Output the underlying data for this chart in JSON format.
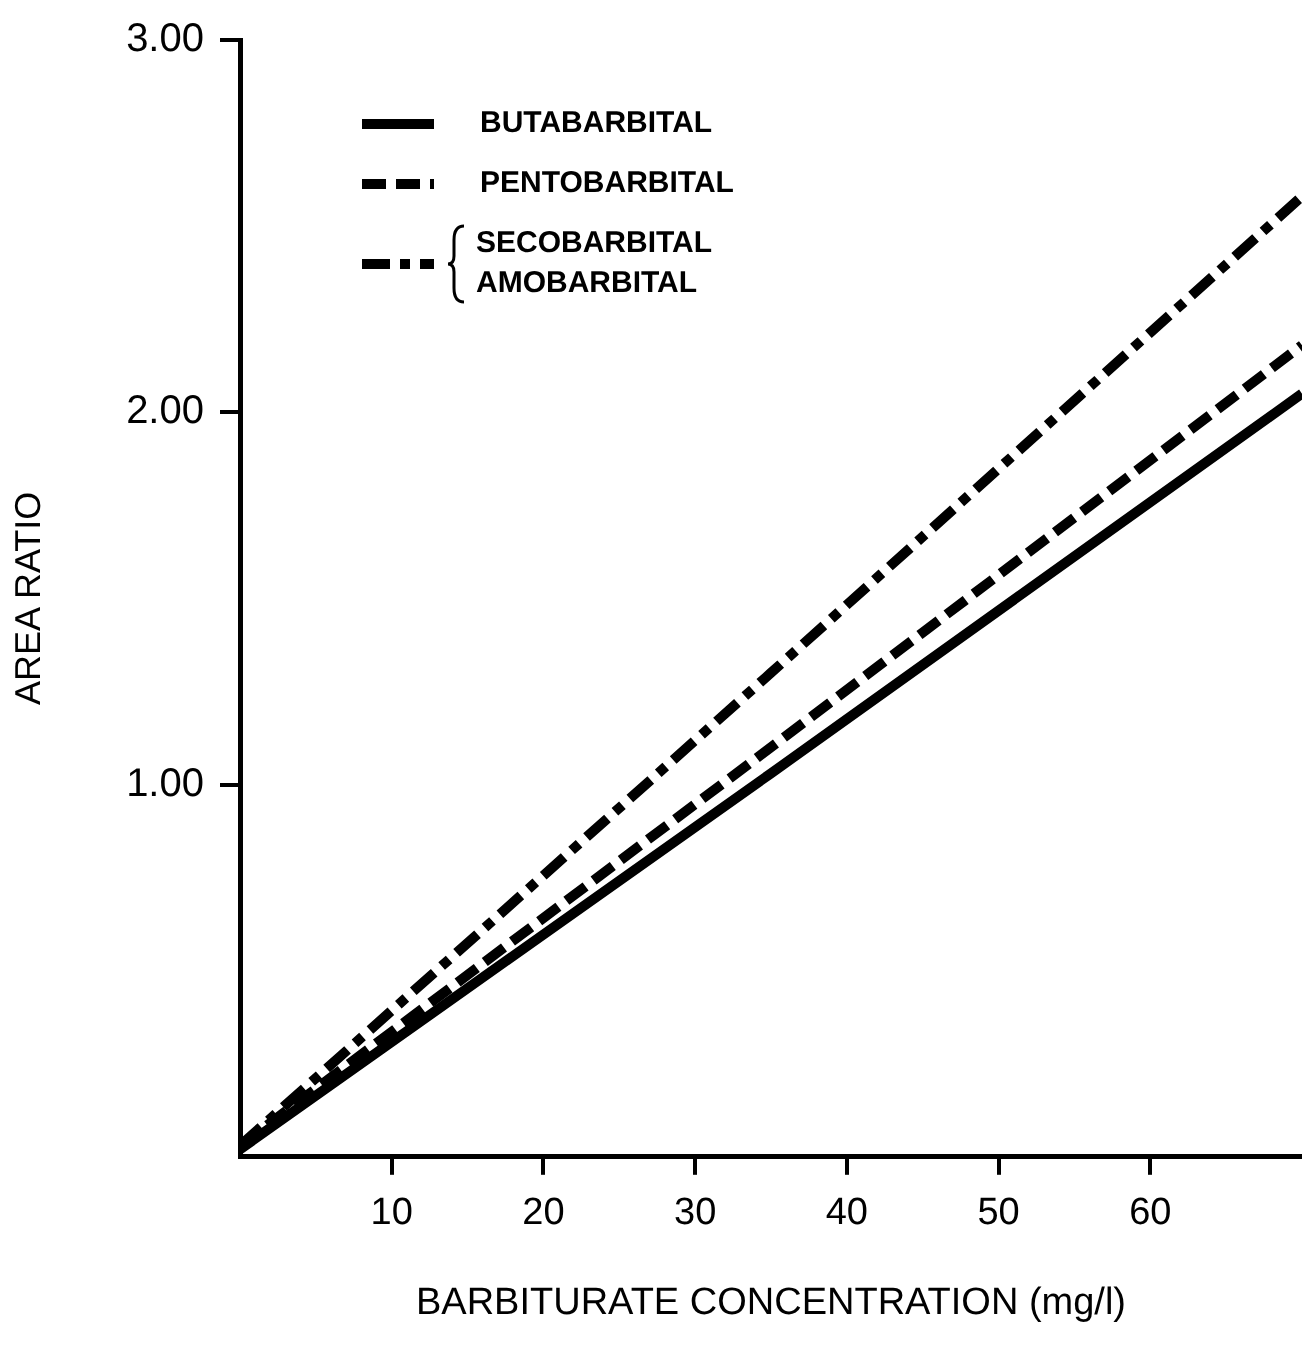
{
  "chart_data": {
    "type": "line",
    "xlabel": "BARBITURATE CONCENTRATION (mg/l)",
    "ylabel": "AREA RATIO",
    "x": [
      0,
      35,
      70
    ],
    "series": [
      {
        "name": "BUTABARBITAL",
        "color": "#000000",
        "line_style": "solid",
        "values": [
          0.02,
          1.03,
          2.05
        ]
      },
      {
        "name": "PENTOBARBITAL",
        "color": "#000000",
        "line_style": "dashed",
        "values": [
          0.03,
          1.1,
          2.18
        ]
      },
      {
        "name": "SECOBARBITAL\nAMOBARBITAL",
        "color": "#000000",
        "line_style": "dashdot",
        "values": [
          0.03,
          1.3,
          2.58
        ]
      }
    ],
    "xlim": [
      0,
      70
    ],
    "ylim": [
      0,
      3
    ],
    "xticks": [
      10,
      20,
      30,
      40,
      50,
      60
    ],
    "yticks": [
      {
        "value": 1,
        "label": "1.00"
      },
      {
        "value": 2,
        "label": "2.00"
      },
      {
        "value": 3,
        "label": "3.00"
      }
    ],
    "grid": false,
    "legend": "top left",
    "marker": "none"
  }
}
